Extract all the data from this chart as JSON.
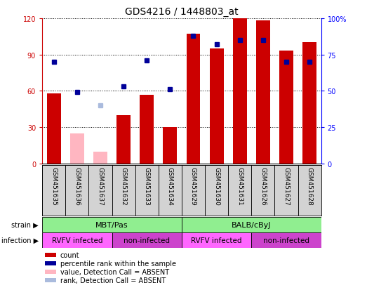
{
  "title": "GDS4216 / 1448803_at",
  "samples": [
    "GSM451635",
    "GSM451636",
    "GSM451637",
    "GSM451632",
    "GSM451633",
    "GSM451634",
    "GSM451629",
    "GSM451630",
    "GSM451631",
    "GSM451626",
    "GSM451627",
    "GSM451628"
  ],
  "count_values": [
    58,
    25,
    10,
    40,
    57,
    30,
    107,
    95,
    120,
    118,
    93,
    100
  ],
  "count_absent": [
    false,
    true,
    true,
    false,
    false,
    false,
    false,
    false,
    false,
    false,
    false,
    false
  ],
  "percentile_values": [
    70,
    49,
    40,
    53,
    71,
    51,
    88,
    82,
    85,
    85,
    70,
    70
  ],
  "percentile_absent": [
    false,
    false,
    true,
    false,
    false,
    false,
    false,
    false,
    false,
    false,
    false,
    false
  ],
  "strain_groups": [
    {
      "label": "MBT/Pas",
      "start": 0,
      "end": 6,
      "color": "#90EE90"
    },
    {
      "label": "BALB/cByJ",
      "start": 6,
      "end": 12,
      "color": "#90EE90"
    }
  ],
  "infection_groups": [
    {
      "label": "RVFV infected",
      "start": 0,
      "end": 3,
      "color": "#FF66FF"
    },
    {
      "label": "non-infected",
      "start": 3,
      "end": 6,
      "color": "#CC44CC"
    },
    {
      "label": "RVFV infected",
      "start": 6,
      "end": 9,
      "color": "#FF66FF"
    },
    {
      "label": "non-infected",
      "start": 9,
      "end": 12,
      "color": "#CC44CC"
    }
  ],
  "ylim_left": [
    0,
    120
  ],
  "ylim_right": [
    0,
    100
  ],
  "yticks_left": [
    0,
    30,
    60,
    90,
    120
  ],
  "yticks_right": [
    0,
    25,
    50,
    75,
    100
  ],
  "bar_color_present": "#CC0000",
  "bar_color_absent": "#FFB6C1",
  "dot_color_present": "#000099",
  "dot_color_absent": "#AABBDD",
  "legend_colors": [
    "#CC0000",
    "#000099",
    "#FFB6C1",
    "#AABBDD"
  ],
  "legend_labels": [
    "count",
    "percentile rank within the sample",
    "value, Detection Call = ABSENT",
    "rank, Detection Call = ABSENT"
  ]
}
